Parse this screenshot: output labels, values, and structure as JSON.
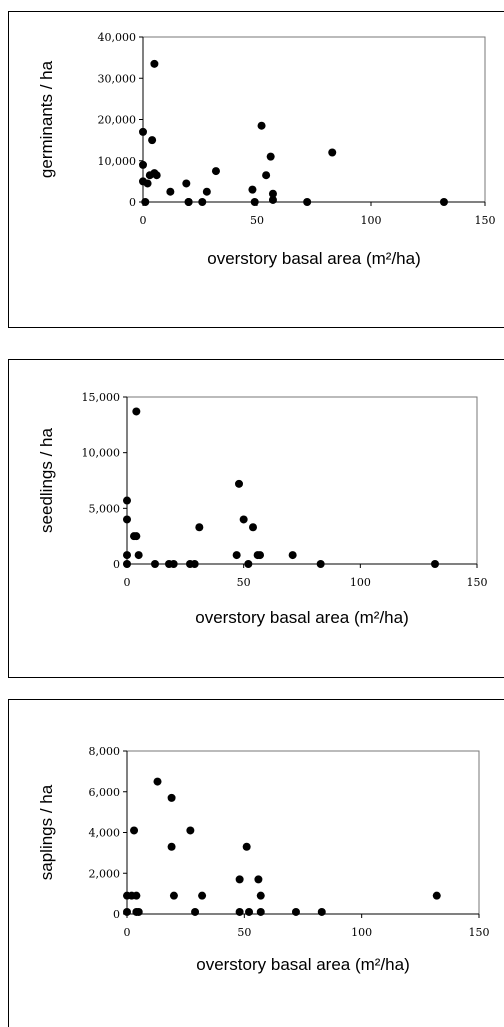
{
  "chart_data": [
    {
      "type": "scatter",
      "title": "",
      "xlabel": "overstory basal area (m²/ha)",
      "ylabel": "germinants / ha",
      "xlim": [
        0,
        150
      ],
      "ylim": [
        0,
        40000
      ],
      "xticks": [
        "0",
        "50",
        "100",
        "150"
      ],
      "yticks": [
        "0",
        "10,000",
        "20,000",
        "30,000",
        "40,000"
      ],
      "grid": false,
      "color": "#000000",
      "x": [
        0,
        0,
        0,
        1,
        2,
        3,
        4,
        5,
        5,
        6,
        12,
        19,
        20,
        20,
        26,
        28,
        32,
        48,
        49,
        52,
        54,
        56,
        57,
        57,
        72,
        83,
        132
      ],
      "y": [
        17000,
        9000,
        5000,
        0,
        4500,
        6500,
        15000,
        33500,
        7000,
        6500,
        2500,
        4500,
        0,
        0,
        0,
        2500,
        7500,
        3000,
        0,
        18500,
        6500,
        11000,
        2000,
        500,
        0,
        12000,
        0
      ]
    },
    {
      "type": "scatter",
      "title": "",
      "xlabel": "overstory basal area (m²/ha)",
      "ylabel": "seedlings / ha",
      "xlim": [
        0,
        150
      ],
      "ylim": [
        0,
        15000
      ],
      "xticks": [
        "0",
        "50",
        "100",
        "150"
      ],
      "yticks": [
        "0",
        "5,000",
        "10,000",
        "15,000"
      ],
      "grid": false,
      "color": "#000000",
      "x": [
        0,
        0,
        0,
        0,
        3,
        4,
        4,
        5,
        12,
        18,
        20,
        27,
        29,
        31,
        47,
        48,
        50,
        52,
        54,
        56,
        57,
        71,
        83,
        132
      ],
      "y": [
        5700,
        4000,
        800,
        0,
        2500,
        13700,
        2500,
        800,
        0,
        0,
        0,
        0,
        0,
        3300,
        800,
        7200,
        4000,
        0,
        3300,
        800,
        800,
        800,
        0,
        0
      ],
      "ylabel_note": ""
    },
    {
      "type": "scatter",
      "title": "",
      "xlabel": "overstory basal area (m²/ha)",
      "ylabel": "saplings / ha",
      "xlim": [
        0,
        150
      ],
      "ylim": [
        0,
        8000
      ],
      "xticks": [
        "0",
        "50",
        "100",
        "150"
      ],
      "yticks": [
        "0",
        "2,000",
        "4,000",
        "6,000",
        "8,000"
      ],
      "grid": false,
      "color": "#000000",
      "x": [
        0,
        0,
        2,
        3,
        4,
        4,
        5,
        13,
        19,
        19,
        20,
        27,
        29,
        32,
        48,
        48,
        51,
        52,
        56,
        57,
        57,
        72,
        83,
        132
      ],
      "y": [
        900,
        100,
        900,
        4100,
        100,
        900,
        100,
        6500,
        5700,
        3300,
        900,
        4100,
        100,
        900,
        1700,
        100,
        3300,
        100,
        1700,
        900,
        100,
        100,
        100,
        900
      ]
    }
  ]
}
